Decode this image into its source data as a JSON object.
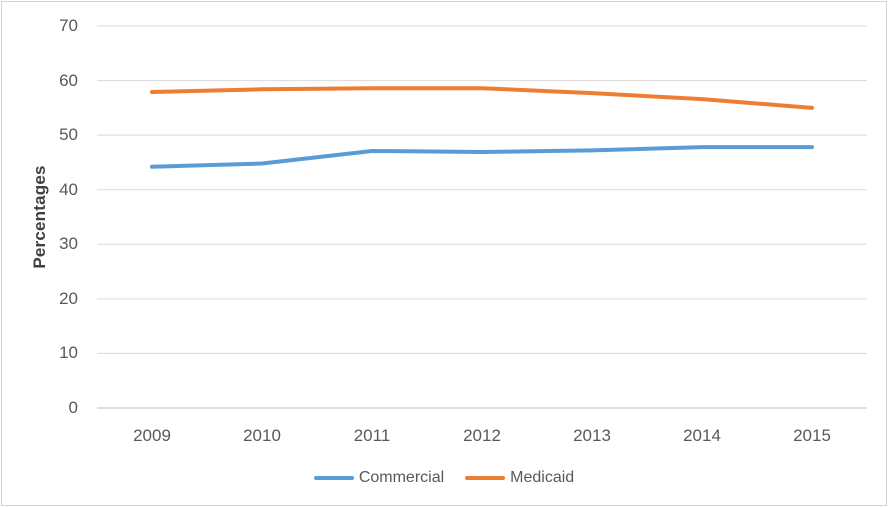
{
  "chart_data": {
    "type": "line",
    "categories": [
      "2009",
      "2010",
      "2011",
      "2012",
      "2013",
      "2014",
      "2015"
    ],
    "series": [
      {
        "name": "Commercial",
        "color": "#5B9BD5",
        "values": [
          44.2,
          44.8,
          47.1,
          46.9,
          47.2,
          47.8,
          47.8
        ]
      },
      {
        "name": "Medicaid",
        "color": "#ED7D31",
        "values": [
          57.9,
          58.4,
          58.6,
          58.6,
          57.7,
          56.6,
          55.0
        ]
      }
    ],
    "title": "",
    "xlabel": "",
    "ylabel": "Percentages",
    "ylim": [
      0,
      70
    ],
    "yticks": [
      0,
      10,
      20,
      30,
      40,
      50,
      60,
      70
    ],
    "grid": "horizontal",
    "legend_position": "bottom"
  },
  "style": {
    "background": "#FFFFFF",
    "border_color": "#D2D2D2",
    "grid_color": "#D9D9D9",
    "axis_line_color": "#BFBFBF",
    "tick_label_color": "#595959",
    "axis_title_color": "#404040",
    "legend_text_color": "#595959"
  }
}
